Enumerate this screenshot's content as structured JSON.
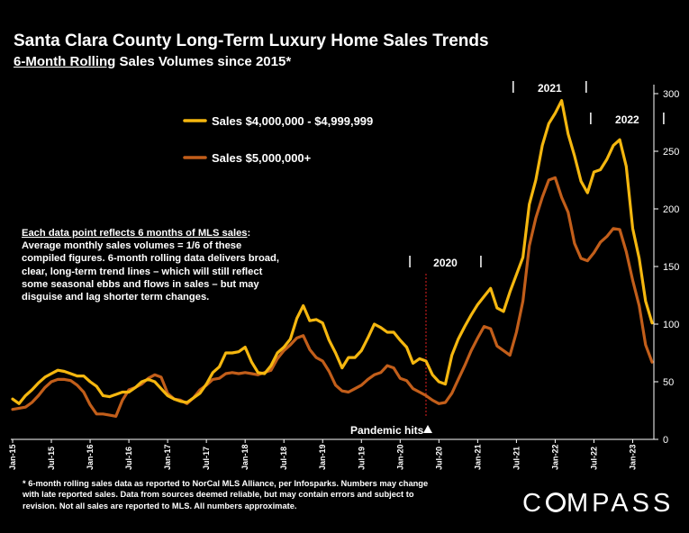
{
  "header": {
    "title": "Santa Clara County Long-Term Luxury Home Sales Trends",
    "subtitle_underlined": "6-Month Rolling",
    "subtitle_rest": " Sales Volumes since 2015*"
  },
  "note": {
    "underlined": "Each data point reflects 6 months of MLS sales",
    "rest": ": Average monthly sales volumes = 1/6 of these compiled figures. 6-month rolling data delivers broad, clear, long-term trend lines – which will still reflect some seasonal ebbs and flows in sales – but may disguise and lag shorter term changes."
  },
  "footnote": "* 6-month rolling sales data as reported to NorCal MLS Alliance, per Infosparks. Numbers may change with late reported sales. Data from sources deemed reliable, but may contain errors and subject to revision. Not all sales are reported to MLS. All numbers approximate.",
  "brand": {
    "before": "C",
    "after": "MPASS"
  },
  "colors": {
    "background": "#000000",
    "series1": "#F5B70F",
    "series2": "#C25E1A",
    "marker": "#E02020"
  },
  "chart_data": {
    "type": "line",
    "ylim": [
      0,
      300
    ],
    "yticks": [
      0,
      50,
      100,
      150,
      200,
      250,
      300
    ],
    "x_tick_labels": [
      "Jan-15",
      "Jul-15",
      "Jan-16",
      "Jul-16",
      "Jan-17",
      "Jul-17",
      "Jan-18",
      "Jul-18",
      "Jan-19",
      "Jul-19",
      "Jan-20",
      "Jul-20",
      "Jan-21",
      "Jul-21",
      "Jan-22",
      "Jul-22",
      "Jan-23"
    ],
    "x_start": "Jan-15",
    "grid": false,
    "legend_position": "top-left",
    "series": [
      {
        "name": "Sales $4,000,000 - $4,999,999",
        "color": "#F5B70F",
        "values": [
          35,
          31,
          38,
          43,
          49,
          54,
          57,
          60,
          59,
          57,
          55,
          55,
          50,
          46,
          38,
          37,
          39,
          41,
          41,
          45,
          50,
          52,
          50,
          44,
          38,
          35,
          33,
          32,
          36,
          40,
          48,
          58,
          63,
          75,
          75,
          76,
          80,
          67,
          58,
          57,
          64,
          75,
          80,
          87,
          105,
          116,
          103,
          104,
          101,
          86,
          75,
          62,
          71,
          71,
          77,
          88,
          100,
          97,
          93,
          93,
          86,
          80,
          66,
          70,
          68,
          56,
          50,
          48,
          73,
          87,
          98,
          108,
          117,
          124,
          131,
          114,
          111,
          128,
          143,
          158,
          204,
          225,
          255,
          274,
          283,
          294,
          265,
          246,
          224,
          214,
          232,
          234,
          243,
          255,
          260,
          237,
          183,
          157,
          120,
          101
        ]
      },
      {
        "name": "Sales $5,000,000+",
        "color": "#C25E1A",
        "values": [
          26,
          27,
          28,
          32,
          38,
          45,
          50,
          52,
          52,
          51,
          47,
          41,
          30,
          22,
          22,
          21,
          20,
          34,
          43,
          45,
          48,
          53,
          56,
          54,
          40,
          35,
          34,
          31,
          36,
          43,
          47,
          52,
          53,
          57,
          58,
          57,
          58,
          57,
          56,
          58,
          60,
          70,
          77,
          82,
          88,
          90,
          78,
          71,
          68,
          59,
          47,
          42,
          41,
          44,
          47,
          52,
          56,
          58,
          64,
          62,
          53,
          51,
          44,
          41,
          38,
          34,
          31,
          32,
          40,
          52,
          64,
          77,
          88,
          98,
          96,
          81,
          77,
          73,
          93,
          120,
          168,
          192,
          210,
          225,
          227,
          210,
          197,
          170,
          157,
          155,
          162,
          171,
          176,
          183,
          182,
          163,
          138,
          116,
          82,
          67
        ]
      }
    ],
    "annotations": [
      {
        "label": "2021",
        "x_from": 77.5,
        "x_to": 88.8
      },
      {
        "label": "2022",
        "x_from": 89.5,
        "x_to": 100.8
      },
      {
        "label": "2020",
        "x_from": 61.5,
        "x_to": 72.5
      },
      {
        "label": "Pandemic hits",
        "x": 64
      }
    ]
  }
}
